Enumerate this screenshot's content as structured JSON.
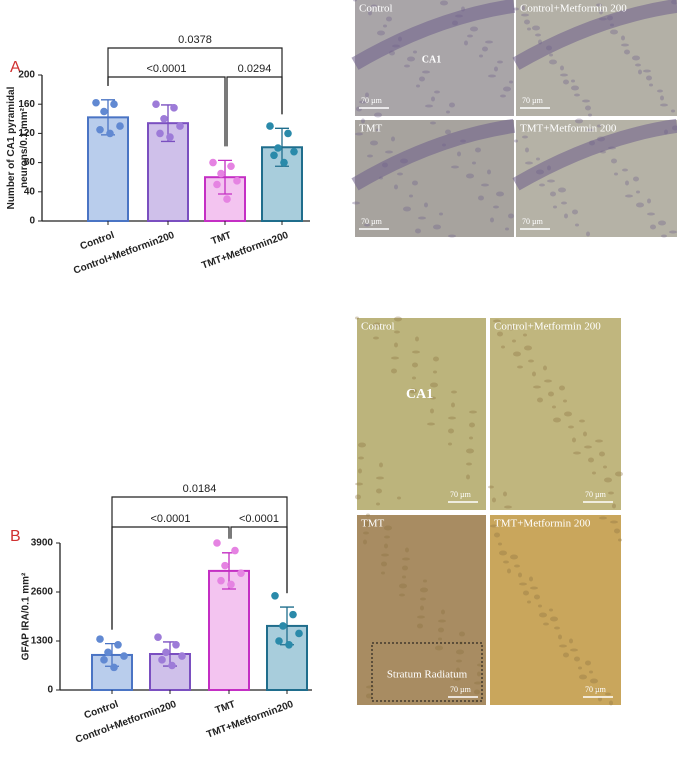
{
  "chart_data": [
    {
      "type": "bar",
      "panel": "A",
      "ylabel": [
        "Number of CA1 pyramidal",
        "neurons/0.1 mm²"
      ],
      "categories": [
        "Control",
        "Control+Metformin200",
        "TMT",
        "TMT+Metformin200"
      ],
      "values": [
        142,
        134,
        60,
        101
      ],
      "errors": [
        24,
        25,
        23,
        26
      ],
      "points": [
        [
          162,
          160,
          150,
          130,
          125,
          120
        ],
        [
          160,
          155,
          140,
          130,
          120,
          115
        ],
        [
          80,
          75,
          65,
          55,
          50,
          30
        ],
        [
          130,
          120,
          100,
          95,
          90,
          80
        ]
      ],
      "colors": [
        "#b9cdec",
        "#cfc0ea",
        "#f3c4f0",
        "#a8cddc"
      ],
      "edge_colors": [
        "#4a74c4",
        "#7a4fc0",
        "#c42fc4",
        "#1f6d8c"
      ],
      "point_colors": [
        "#6189d2",
        "#9d7bd8",
        "#e583e2",
        "#2a8aaa"
      ],
      "ylim": [
        0,
        200
      ],
      "yticks": [
        0,
        40,
        80,
        120,
        160,
        200
      ],
      "significance": [
        {
          "pair": [
            0,
            3
          ],
          "label": "0.0378"
        },
        {
          "pair": [
            0,
            2
          ],
          "label": "<0.0001"
        },
        {
          "pair": [
            2,
            3
          ],
          "label": "0.0294"
        }
      ]
    },
    {
      "type": "bar",
      "panel": "B",
      "ylabel": [
        "GFAP IRA/0.1 mm²"
      ],
      "categories": [
        "Control",
        "Control+Metformin200",
        "TMT",
        "TMT+Metformin200"
      ],
      "values": [
        930,
        955,
        3160,
        1700
      ],
      "errors": [
        300,
        320,
        480,
        500
      ],
      "points": [
        [
          1350,
          1200,
          1000,
          900,
          800,
          600
        ],
        [
          1400,
          1200,
          1000,
          900,
          800,
          650
        ],
        [
          3900,
          3700,
          3300,
          3100,
          2900,
          2800
        ],
        [
          2500,
          2000,
          1700,
          1500,
          1300,
          1200
        ]
      ],
      "colors": [
        "#b9cdec",
        "#cfc0ea",
        "#f3c4f0",
        "#a8cddc"
      ],
      "edge_colors": [
        "#4a74c4",
        "#7a4fc0",
        "#c42fc4",
        "#1f6d8c"
      ],
      "point_colors": [
        "#6189d2",
        "#9d7bd8",
        "#e583e2",
        "#2a8aaa"
      ],
      "ylim": [
        0,
        3900
      ],
      "yticks": [
        0,
        1300,
        2600,
        3900
      ],
      "significance": [
        {
          "pair": [
            0,
            3
          ],
          "label": "0.0184"
        },
        {
          "pair": [
            0,
            2
          ],
          "label": "<0.0001"
        },
        {
          "pair": [
            2,
            3
          ],
          "label": "<0.0001"
        }
      ]
    }
  ],
  "micrographs": [
    {
      "panels": [
        {
          "label": "Control",
          "scale": "70 µm",
          "region": "CA1"
        },
        {
          "label": "Control+Metformin 200",
          "scale": "70 µm"
        },
        {
          "label": "TMT",
          "scale": "70 µm"
        },
        {
          "label": "TMT+Metformin 200",
          "scale": "70 µm"
        }
      ]
    },
    {
      "panels": [
        {
          "label": "Control",
          "scale": "70 µm",
          "region": "CA1"
        },
        {
          "label": "Control+Metformin 200",
          "scale": "70 µm"
        },
        {
          "label": "TMT",
          "scale": "70 µm",
          "region": "Stratum Radiatum"
        },
        {
          "label": "TMT+Metformin 200",
          "scale": "70 µm"
        }
      ]
    }
  ]
}
